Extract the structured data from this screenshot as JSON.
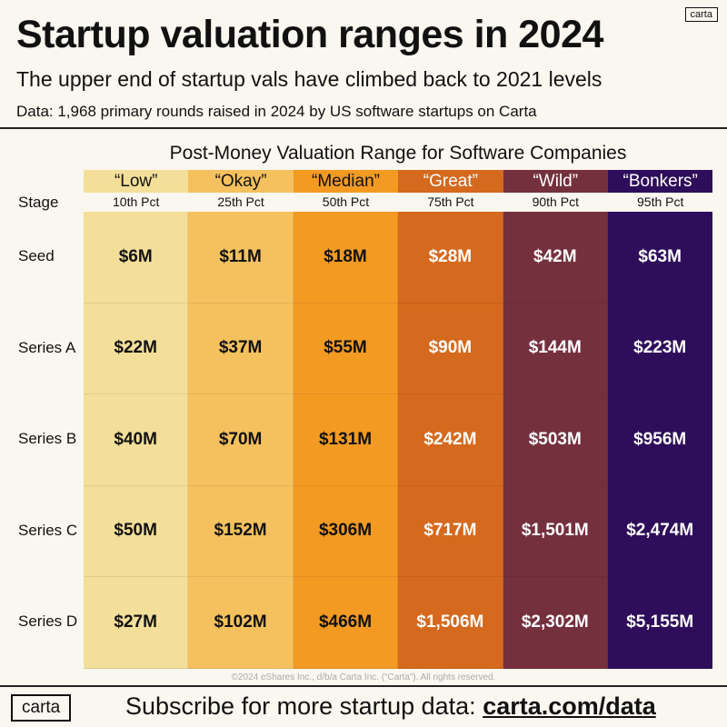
{
  "header": {
    "title": "Startup valuation ranges in 2024",
    "subtitle": "The upper end of startup vals have climbed back to 2021 levels",
    "note": "Data: 1,968 primary rounds raised in 2024 by US software startups on Carta",
    "logo": "carta"
  },
  "chart_data": {
    "type": "table",
    "title": "Post-Money Valuation Range for Software Companies",
    "row_header": "Stage",
    "columns": [
      {
        "label": "“Low”",
        "pct": "10th Pct",
        "color": "#f4df9a",
        "text_color": "#111111"
      },
      {
        "label": "“Okay”",
        "pct": "25th Pct",
        "color": "#f5c15e",
        "text_color": "#111111"
      },
      {
        "label": "“Median”",
        "pct": "50th Pct",
        "color": "#f39a23",
        "text_color": "#111111"
      },
      {
        "label": "“Great”",
        "pct": "75th Pct",
        "color": "#d5691d",
        "text_color": "#ffffff"
      },
      {
        "label": "“Wild”",
        "pct": "90th Pct",
        "color": "#75303e",
        "text_color": "#ffffff"
      },
      {
        "label": "“Bonkers”",
        "pct": "95th Pct",
        "color": "#2e0e5a",
        "text_color": "#ffffff"
      }
    ],
    "rows": [
      {
        "stage": "Seed",
        "values": [
          "$6M",
          "$11M",
          "$18M",
          "$28M",
          "$42M",
          "$63M"
        ]
      },
      {
        "stage": "Series A",
        "values": [
          "$22M",
          "$37M",
          "$55M",
          "$90M",
          "$144M",
          "$223M"
        ]
      },
      {
        "stage": "Series B",
        "values": [
          "$40M",
          "$70M",
          "$131M",
          "$242M",
          "$503M",
          "$956M"
        ]
      },
      {
        "stage": "Series C",
        "values": [
          "$50M",
          "$152M",
          "$306M",
          "$717M",
          "$1,501M",
          "$2,474M"
        ]
      },
      {
        "stage": "Series D",
        "values": [
          "$27M",
          "$102M",
          "$466M",
          "$1,506M",
          "$2,302M",
          "$5,155M"
        ]
      }
    ]
  },
  "footer": {
    "copyright": "©2024 eShares Inc., d/b/a Carta Inc. (“Carta”). All rights reserved.",
    "logo": "carta",
    "subscribe_text": "Subscribe for more startup data: ",
    "link": "carta.com/data"
  }
}
